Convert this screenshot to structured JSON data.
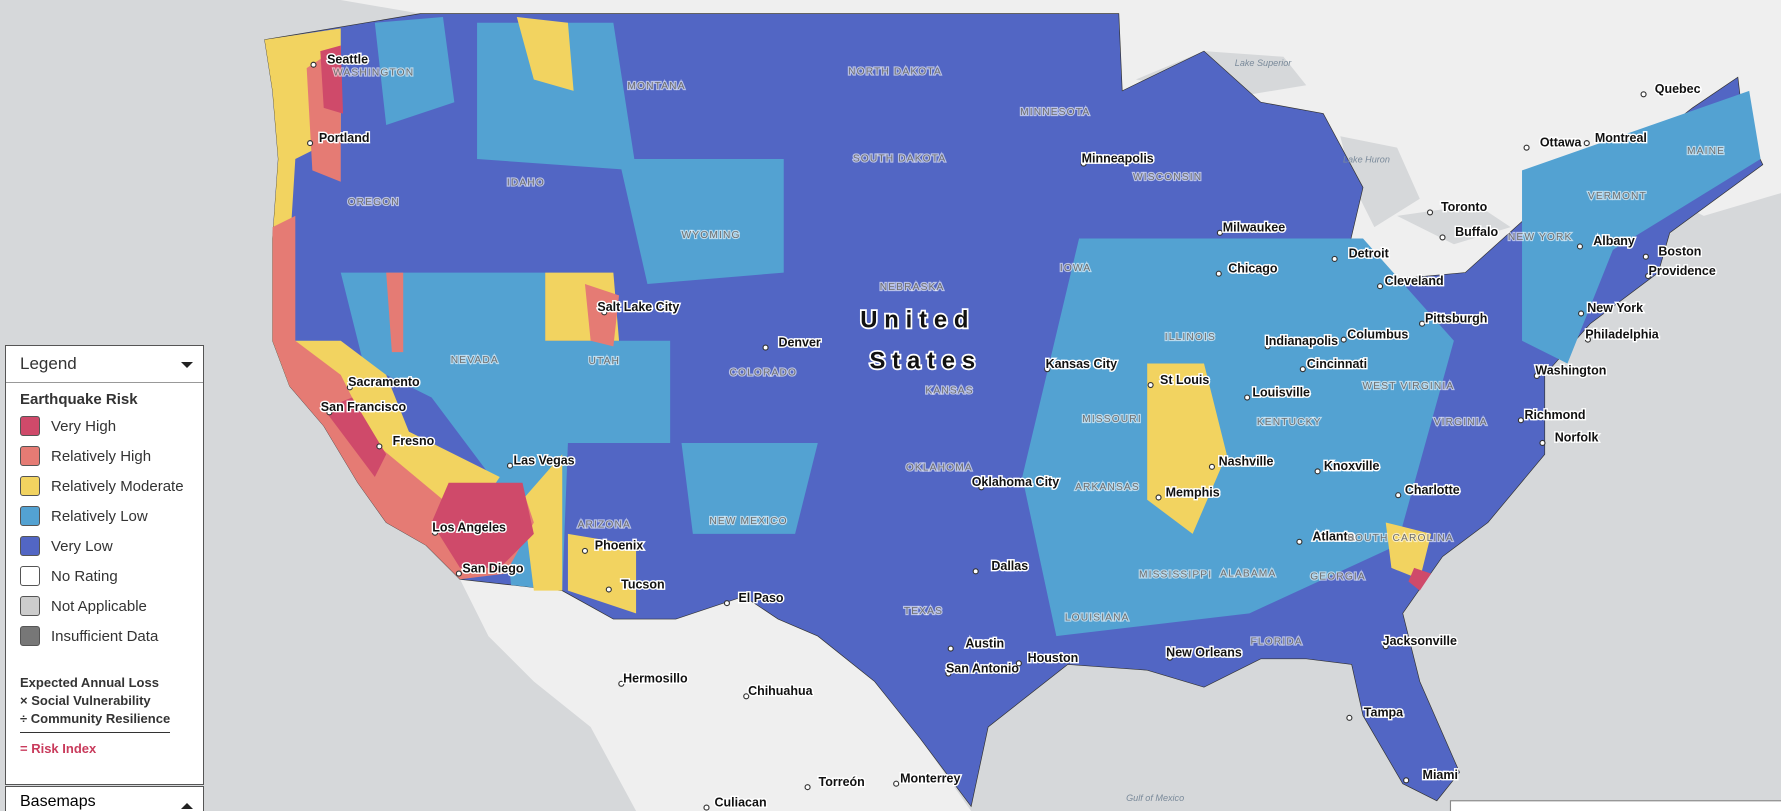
{
  "map": {
    "country_label": [
      "United",
      "States"
    ],
    "cities": [
      "Seattle",
      "Portland",
      "Sacramento",
      "San Francisco",
      "Fresno",
      "Los Angeles",
      "San Diego",
      "Las Vegas",
      "Phoenix",
      "Tucson",
      "Salt Lake City",
      "Denver",
      "El Paso",
      "Dallas",
      "Oklahoma City",
      "Austin",
      "San Antonio",
      "Houston",
      "Kansas City",
      "St Louis",
      "Memphis",
      "Nashville",
      "Atlanta",
      "Jacksonville",
      "Tampa",
      "Miami",
      "New Orleans",
      "Charlotte",
      "Knoxville",
      "Louisville",
      "Indianapolis",
      "Cincinnati",
      "Columbus",
      "Chicago",
      "Milwaukee",
      "Minneapolis",
      "Detroit",
      "Cleveland",
      "Pittsburgh",
      "Buffalo",
      "Toronto",
      "Ottawa",
      "Montreal",
      "Quebec",
      "Boston",
      "Providence",
      "Albany",
      "New York",
      "Philadelphia",
      "Washington",
      "Richmond",
      "Norfolk",
      "Hermosillo",
      "Chihuahua",
      "Torreón",
      "Monterrey",
      "Culiacan"
    ],
    "states": [
      "WASHINGTON",
      "OREGON",
      "IDAHO",
      "MONTANA",
      "WYOMING",
      "NEVADA",
      "UTAH",
      "COLORADO",
      "ARIZONA",
      "NEW MEXICO",
      "NORTH DAKOTA",
      "SOUTH DAKOTA",
      "NEBRASKA",
      "KANSAS",
      "OKLAHOMA",
      "TEXAS",
      "MINNESOTA",
      "IOWA",
      "MISSOURI",
      "ARKANSAS",
      "LOUISIANA",
      "MISSISSIPPI",
      "ALABAMA",
      "GEORGIA",
      "FLORIDA",
      "ILLINOIS",
      "WISCONSIN",
      "KENTUCKY",
      "WEST VIRGINIA",
      "VIRGINIA",
      "SOUTH CAROLINA",
      "NEW YORK",
      "VERMONT",
      "MAINE"
    ],
    "water": [
      "Lake Superior",
      "Lake Huron",
      "Gulf of Mexico"
    ]
  },
  "legend": {
    "title": "Legend",
    "heading": "Earthquake Risk",
    "items": [
      {
        "label": "Very High",
        "color": "#cf4a6a"
      },
      {
        "label": "Relatively High",
        "color": "#e57b74"
      },
      {
        "label": "Relatively Moderate",
        "color": "#f2d360"
      },
      {
        "label": "Relatively Low",
        "color": "#53a2d2"
      },
      {
        "label": "Very Low",
        "color": "#5266c4"
      },
      {
        "label": "No Rating",
        "color": "#ffffff"
      },
      {
        "label": "Not Applicable",
        "color": "#cccccc"
      },
      {
        "label": "Insufficient Data",
        "color": "#777777"
      }
    ],
    "formula": [
      "Expected Annual Loss",
      "× Social Vulnerability",
      "÷ Community Resilience"
    ],
    "result": "= Risk Index"
  },
  "basemaps": "Basemaps"
}
